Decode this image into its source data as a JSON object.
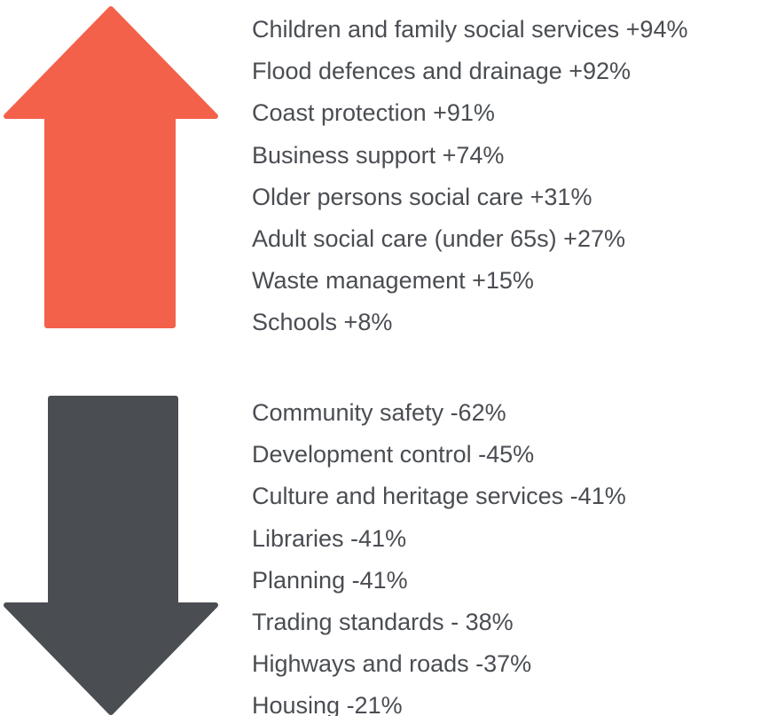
{
  "colors": {
    "increase_arrow": "#f3614a",
    "decrease_arrow": "#4a4d52",
    "text": "#4a4d52"
  },
  "increases": {
    "icon": "arrow-up-icon",
    "items": [
      "Children and family social services +94%",
      "Flood defences and drainage +92%",
      "Coast protection +91%",
      "Business support +74%",
      "Older persons social care +31%",
      "Adult social care (under 65s) +27%",
      "Waste management +15%",
      "Schools +8%"
    ]
  },
  "decreases": {
    "icon": "arrow-down-icon",
    "items": [
      "Community safety -62%",
      "Development control -45%",
      "Culture and heritage services -41%",
      "Libraries -41%",
      "Planning -41%",
      "Trading standards - 38%",
      "Highways and roads -37%",
      "Housing -21%"
    ]
  }
}
